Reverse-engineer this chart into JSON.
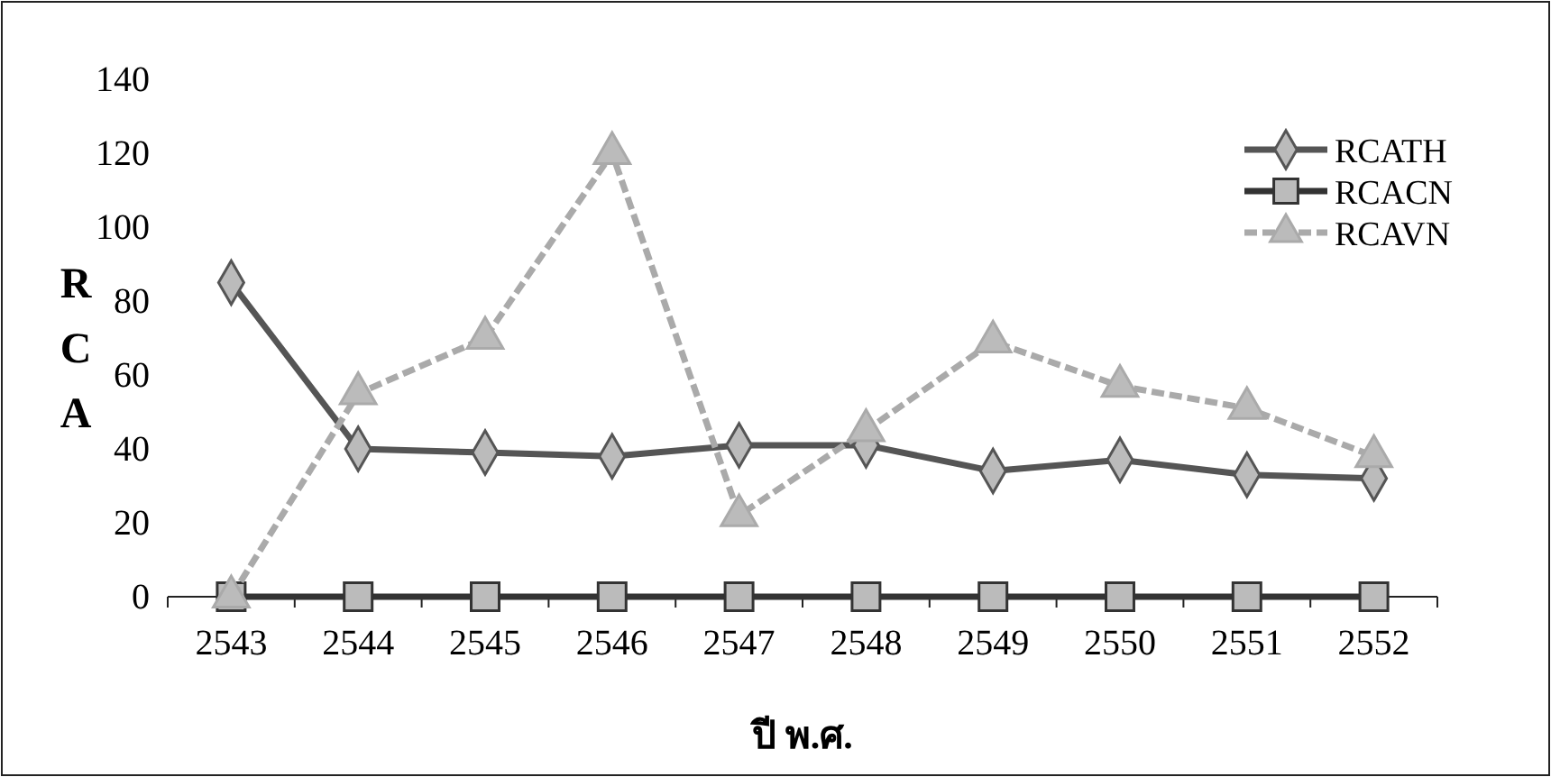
{
  "chart_data": {
    "type": "line",
    "xlabel": "ปี พ.ศ.",
    "ylabel": "RCA",
    "categories": [
      "2543",
      "2544",
      "2545",
      "2546",
      "2547",
      "2548",
      "2549",
      "2550",
      "2551",
      "2552"
    ],
    "ylim": [
      0,
      140
    ],
    "yticks": [
      0,
      20,
      40,
      60,
      80,
      100,
      120,
      140
    ],
    "grid": false,
    "legend": "top right",
    "series": [
      {
        "name": "RCATH",
        "color": "#555555",
        "marker": "diamond",
        "line_style": "solid",
        "values": [
          85,
          40,
          39,
          38,
          41,
          41,
          34,
          37,
          33,
          32
        ]
      },
      {
        "name": "RCACN",
        "color": "#333333",
        "marker": "square",
        "line_style": "solid",
        "values": [
          0,
          0,
          0,
          0,
          0,
          0,
          0,
          0,
          0,
          0
        ]
      },
      {
        "name": "RCAVN",
        "color": "#aaaaaa",
        "marker": "triangle",
        "line_style": "dashed",
        "values": [
          0,
          55,
          70,
          120,
          22,
          45,
          69,
          57,
          51,
          38
        ]
      }
    ]
  }
}
